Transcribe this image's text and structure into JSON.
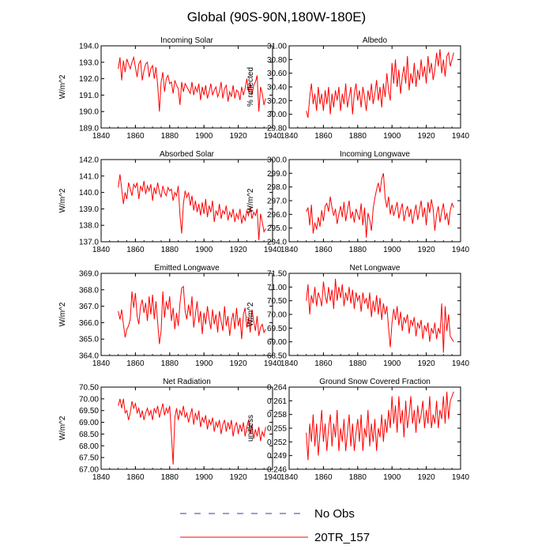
{
  "figure_title": "Global (90S-90N,180W-180E)",
  "colors": {
    "model_line": "#ff0000",
    "obs_line": "#3a3aa0",
    "axis": "#000000",
    "background": "#ffffff"
  },
  "legend": [
    {
      "label": "No Obs",
      "style": "dashed",
      "color": "#3a3aa0"
    },
    {
      "label": "20TR_157",
      "style": "solid",
      "color": "#ff0000"
    }
  ],
  "chart_data": [
    {
      "type": "line",
      "title": "Incoming Solar",
      "ylabel": "W/m^2",
      "xlabel": "",
      "xlim": [
        1840,
        1940
      ],
      "xticks": [
        1840,
        1860,
        1880,
        1900,
        1920,
        1940
      ],
      "ylim": [
        189.0,
        194.0
      ],
      "yticks": [
        "189.0",
        "190.0",
        "191.0",
        "192.0",
        "193.0",
        "194.0"
      ],
      "x_start": 1850,
      "series": [
        {
          "name": "20TR_157",
          "values": [
            192.6,
            193.3,
            191.9,
            193.1,
            192.4,
            193.2,
            192.9,
            192.6,
            193.0,
            193.3,
            192.7,
            192.1,
            192.9,
            193.1,
            191.9,
            192.5,
            192.9,
            193.0,
            192.1,
            192.6,
            192.8,
            192.0,
            192.7,
            191.6,
            190.0,
            191.8,
            192.4,
            191.2,
            192.0,
            192.2,
            191.7,
            191.8,
            191.1,
            191.9,
            191.6,
            191.4,
            190.4,
            191.8,
            191.2,
            191.7,
            191.5,
            191.3,
            191.1,
            191.8,
            191.0,
            191.5,
            191.2,
            191.7,
            190.7,
            191.5,
            191.0,
            191.6,
            190.8,
            191.2,
            191.7,
            191.0,
            191.3,
            191.5,
            190.9,
            191.2,
            191.8,
            190.8,
            191.4,
            191.6,
            190.6,
            191.2,
            190.9,
            191.6,
            190.8,
            191.3,
            191.2,
            190.7,
            191.5,
            191.0,
            191.4,
            192.0,
            191.2,
            191.7,
            191.0,
            191.6,
            191.8,
            192.2,
            190.0,
            191.5,
            191.1,
            190.4,
            190.8
          ]
        }
      ]
    },
    {
      "type": "line",
      "title": "Albedo",
      "ylabel": "% reflected",
      "xlabel": "",
      "xlim": [
        1840,
        1940
      ],
      "xticks": [
        1840,
        1860,
        1880,
        1900,
        1920,
        1940
      ],
      "ylim": [
        29.8,
        31.0
      ],
      "yticks": [
        "29.80",
        "30.00",
        "30.20",
        "30.40",
        "30.60",
        "30.80",
        "31.00"
      ],
      "x_start": 1850,
      "series": [
        {
          "name": "20TR_157",
          "values": [
            30.05,
            29.95,
            30.25,
            30.45,
            30.15,
            30.3,
            30.05,
            30.4,
            30.15,
            30.3,
            30.05,
            30.35,
            30.15,
            30.4,
            30.0,
            30.3,
            30.1,
            30.35,
            30.2,
            30.4,
            30.05,
            30.3,
            30.15,
            30.45,
            30.1,
            30.25,
            30.4,
            30.0,
            30.3,
            30.45,
            30.2,
            30.35,
            30.1,
            30.4,
            30.25,
            30.05,
            30.35,
            30.2,
            30.45,
            30.15,
            30.3,
            30.5,
            30.2,
            30.4,
            30.1,
            30.45,
            30.25,
            30.6,
            30.35,
            30.2,
            30.75,
            30.45,
            30.8,
            30.4,
            30.65,
            30.3,
            30.55,
            30.7,
            30.45,
            30.85,
            30.35,
            30.6,
            30.45,
            30.75,
            30.4,
            30.65,
            30.5,
            30.8,
            30.55,
            30.7,
            30.45,
            30.85,
            30.6,
            30.75,
            30.5,
            30.65,
            30.9,
            30.7,
            30.95,
            30.6,
            30.8,
            30.55,
            30.85,
            30.9,
            30.7,
            30.8,
            30.9
          ]
        }
      ]
    },
    {
      "type": "line",
      "title": "Absorbed Solar",
      "ylabel": "W/m^2",
      "xlabel": "",
      "xlim": [
        1840,
        1940
      ],
      "xticks": [
        1840,
        1860,
        1880,
        1900,
        1920,
        1940
      ],
      "ylim": [
        137.0,
        142.0
      ],
      "yticks": [
        "137.0",
        "138.0",
        "139.0",
        "140.0",
        "141.0",
        "142.0"
      ],
      "x_start": 1850,
      "series": [
        {
          "name": "20TR_157",
          "values": [
            140.3,
            141.1,
            140.2,
            139.3,
            140.0,
            139.6,
            140.6,
            140.2,
            139.8,
            140.5,
            140.3,
            140.6,
            139.6,
            140.4,
            140.1,
            140.7,
            139.9,
            140.4,
            140.1,
            140.5,
            139.5,
            140.3,
            139.9,
            140.6,
            140.0,
            139.7,
            140.4,
            140.0,
            139.8,
            140.3,
            140.1,
            140.2,
            139.5,
            140.0,
            139.8,
            140.4,
            138.6,
            137.5,
            139.3,
            140.1,
            139.7,
            140.0,
            139.2,
            139.8,
            138.9,
            139.5,
            138.8,
            139.3,
            138.6,
            139.4,
            138.7,
            139.6,
            138.5,
            139.2,
            138.8,
            139.5,
            138.2,
            138.9,
            138.6,
            139.3,
            138.4,
            138.9,
            138.7,
            139.2,
            138.3,
            138.8,
            138.5,
            139.0,
            138.2,
            138.7,
            138.4,
            139.0,
            138.1,
            138.6,
            138.3,
            138.9,
            138.6,
            139.1,
            138.4,
            138.8,
            138.6,
            139.0,
            137.1,
            138.7,
            138.2,
            137.6,
            137.8
          ]
        }
      ]
    },
    {
      "type": "line",
      "title": "Incoming Longwave",
      "ylabel": "W/m^2",
      "xlabel": "",
      "xlim": [
        1840,
        1940
      ],
      "xticks": [
        1840,
        1860,
        1880,
        1900,
        1920,
        1940
      ],
      "ylim": [
        294.0,
        300.0
      ],
      "yticks": [
        "294.0",
        "295.0",
        "296.0",
        "297.0",
        "298.0",
        "299.0",
        "300.0"
      ],
      "x_start": 1850,
      "series": [
        {
          "name": "20TR_157",
          "values": [
            296.2,
            296.5,
            295.2,
            296.7,
            294.6,
            295.4,
            294.9,
            295.8,
            295.1,
            296.3,
            295.5,
            296.6,
            296.8,
            296.2,
            297.3,
            296.5,
            295.9,
            296.4,
            295.3,
            296.0,
            296.6,
            295.8,
            296.9,
            295.5,
            296.3,
            297.0,
            295.7,
            296.2,
            295.4,
            296.4,
            296.0,
            295.6,
            296.8,
            295.2,
            296.5,
            294.3,
            296.1,
            295.6,
            294.8,
            296.4,
            297.2,
            297.8,
            298.3,
            297.6,
            298.6,
            299.0,
            297.2,
            296.5,
            297.3,
            296.0,
            296.7,
            295.9,
            296.4,
            296.9,
            295.7,
            296.3,
            296.8,
            295.5,
            296.2,
            296.6,
            295.8,
            296.4,
            295.3,
            296.1,
            296.7,
            295.6,
            296.3,
            297.0,
            295.8,
            296.5,
            295.2,
            296.9,
            296.1,
            297.1,
            296.4,
            294.8,
            296.0,
            296.6,
            295.4,
            296.2,
            296.8,
            295.6,
            296.1,
            295.2,
            296.3,
            296.8,
            296.5
          ]
        }
      ]
    },
    {
      "type": "line",
      "title": "Emitted Longwave",
      "ylabel": "W/m^2",
      "xlabel": "",
      "xlim": [
        1840,
        1940
      ],
      "xticks": [
        1840,
        1860,
        1880,
        1900,
        1920,
        1940
      ],
      "ylim": [
        364.0,
        369.0
      ],
      "yticks": [
        "364.0",
        "365.0",
        "366.0",
        "367.0",
        "368.0",
        "369.0"
      ],
      "x_start": 1850,
      "series": [
        {
          "name": "20TR_157",
          "values": [
            366.7,
            366.2,
            366.8,
            365.9,
            365.1,
            365.6,
            365.8,
            366.2,
            367.9,
            366.9,
            367.8,
            366.4,
            365.9,
            367.0,
            367.4,
            366.6,
            367.2,
            366.1,
            367.6,
            366.5,
            367.7,
            366.2,
            367.3,
            366.0,
            364.7,
            365.5,
            367.9,
            366.3,
            367.3,
            366.8,
            367.6,
            366.1,
            366.9,
            365.6,
            366.6,
            365.8,
            367.2,
            368.1,
            368.2,
            366.7,
            366.2,
            367.1,
            366.4,
            367.6,
            365.7,
            366.5,
            367.3,
            366.0,
            366.7,
            365.3,
            366.6,
            365.9,
            367.0,
            366.2,
            365.6,
            366.8,
            365.9,
            366.5,
            365.4,
            366.7,
            366.1,
            365.5,
            367.0,
            365.8,
            366.4,
            365.2,
            366.1,
            366.6,
            365.6,
            366.9,
            365.8,
            366.3,
            365.0,
            366.5,
            366.9,
            365.7,
            366.3,
            365.4,
            366.8,
            366.1,
            365.5,
            366.4,
            365.2,
            365.7,
            365.9,
            365.4,
            365.6
          ]
        }
      ]
    },
    {
      "type": "line",
      "title": "Net Longwave",
      "ylabel": "W/m^2",
      "xlabel": "",
      "xlim": [
        1840,
        1940
      ],
      "xticks": [
        1840,
        1860,
        1880,
        1900,
        1920,
        1940
      ],
      "ylim": [
        68.5,
        71.5
      ],
      "yticks": [
        "68.50",
        "69.00",
        "69.50",
        "70.00",
        "70.50",
        "71.00",
        "71.50"
      ],
      "x_start": 1850,
      "series": [
        {
          "name": "20TR_157",
          "values": [
            70.5,
            71.1,
            70.0,
            70.7,
            70.4,
            71.0,
            70.3,
            70.8,
            70.6,
            70.3,
            71.2,
            70.7,
            70.4,
            71.0,
            70.5,
            70.9,
            70.2,
            71.3,
            70.5,
            71.0,
            70.6,
            71.1,
            70.3,
            70.8,
            70.5,
            71.0,
            70.4,
            70.9,
            70.2,
            70.8,
            70.5,
            70.7,
            70.1,
            70.8,
            70.4,
            70.6,
            70.2,
            70.8,
            69.9,
            70.5,
            70.1,
            70.7,
            70.0,
            70.6,
            69.8,
            70.4,
            70.0,
            70.3,
            69.5,
            68.8,
            69.7,
            70.2,
            69.8,
            70.3,
            69.6,
            70.1,
            69.4,
            69.9,
            69.7,
            70.0,
            69.3,
            69.8,
            69.6,
            69.9,
            69.2,
            69.7,
            69.5,
            69.8,
            69.1,
            69.6,
            69.4,
            69.7,
            69.0,
            69.5,
            69.3,
            69.7,
            69.1,
            69.5,
            69.3,
            70.4,
            68.6,
            70.3,
            69.4,
            70.0,
            69.2,
            69.1,
            69.0
          ]
        }
      ]
    },
    {
      "type": "line",
      "title": "Net Radiation",
      "ylabel": "W/m^2",
      "xlabel": "",
      "xlim": [
        1840,
        1940
      ],
      "xticks": [
        1840,
        1860,
        1880,
        1900,
        1920,
        1940
      ],
      "ylim": [
        67.0,
        70.5
      ],
      "yticks": [
        "67.00",
        "67.50",
        "68.00",
        "68.50",
        "69.00",
        "69.50",
        "70.00",
        "70.50"
      ],
      "x_start": 1850,
      "series": [
        {
          "name": "20TR_157",
          "values": [
            69.7,
            70.0,
            69.6,
            70.0,
            69.4,
            69.5,
            69.1,
            69.4,
            69.9,
            69.6,
            69.8,
            69.4,
            69.6,
            69.2,
            69.5,
            69.1,
            69.4,
            69.6,
            69.3,
            69.5,
            69.1,
            69.6,
            69.4,
            69.7,
            69.2,
            69.5,
            69.8,
            69.3,
            69.6,
            69.4,
            69.7,
            68.5,
            67.2,
            69.2,
            69.6,
            69.1,
            69.5,
            69.3,
            69.7,
            69.2,
            69.4,
            69.0,
            69.3,
            69.6,
            68.9,
            69.4,
            69.1,
            69.5,
            68.8,
            69.2,
            69.0,
            69.3,
            68.7,
            69.1,
            68.9,
            69.2,
            68.6,
            69.0,
            68.8,
            69.1,
            68.5,
            68.9,
            69.1,
            68.6,
            69.0,
            68.7,
            69.1,
            68.4,
            68.8,
            69.0,
            68.5,
            68.9,
            68.6,
            69.0,
            68.4,
            68.8,
            69.1,
            68.5,
            68.9,
            68.3,
            68.7,
            68.4,
            68.8,
            68.2,
            68.6,
            68.4,
            68.8
          ]
        }
      ]
    },
    {
      "type": "line",
      "title": "Ground Snow Covered Fraction",
      "ylabel": "unitless",
      "xlabel": "",
      "xlim": [
        1840,
        1940
      ],
      "xticks": [
        1840,
        1860,
        1880,
        1900,
        1920,
        1940
      ],
      "ylim": [
        0.246,
        0.264
      ],
      "yticks": [
        "0.246",
        "0.249",
        "0.252",
        "0.255",
        "0.258",
        "0.261",
        "0.264"
      ],
      "x_start": 1850,
      "series": [
        {
          "name": "20TR_157",
          "values": [
            0.254,
            0.248,
            0.256,
            0.252,
            0.258,
            0.251,
            0.256,
            0.249,
            0.254,
            0.259,
            0.252,
            0.256,
            0.25,
            0.255,
            0.258,
            0.251,
            0.256,
            0.253,
            0.259,
            0.25,
            0.255,
            0.252,
            0.257,
            0.25,
            0.254,
            0.258,
            0.251,
            0.256,
            0.25,
            0.254,
            0.257,
            0.252,
            0.258,
            0.25,
            0.255,
            0.253,
            0.259,
            0.251,
            0.256,
            0.252,
            0.257,
            0.25,
            0.255,
            0.253,
            0.258,
            0.252,
            0.257,
            0.254,
            0.259,
            0.255,
            0.262,
            0.256,
            0.26,
            0.254,
            0.262,
            0.256,
            0.259,
            0.253,
            0.261,
            0.255,
            0.258,
            0.262,
            0.256,
            0.259,
            0.254,
            0.26,
            0.256,
            0.258,
            0.261,
            0.255,
            0.259,
            0.256,
            0.262,
            0.255,
            0.258,
            0.256,
            0.261,
            0.255,
            0.259,
            0.257,
            0.262,
            0.256,
            0.263,
            0.257,
            0.261,
            0.262,
            0.263
          ]
        }
      ]
    }
  ]
}
